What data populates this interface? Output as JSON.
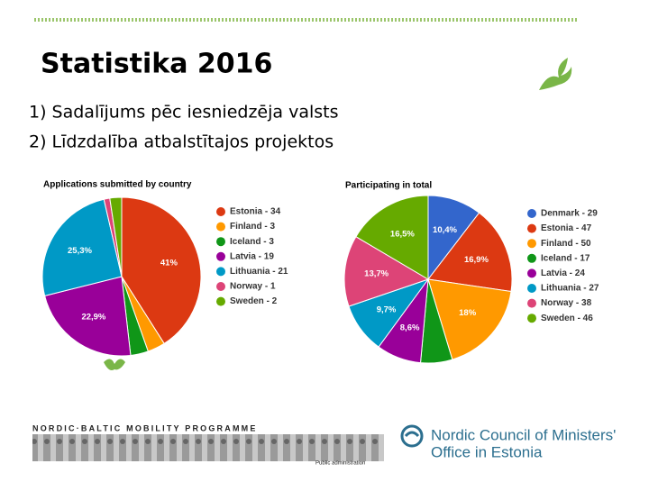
{
  "slide": {
    "title": "Statistika 2016",
    "bullets": [
      "1) Sadalījums pēc iesniedzēja valsts",
      "2) Līdzdalība atbalstītajos projektos"
    ]
  },
  "footer": {
    "programme": "NORDIC·BALTIC MOBILITY PROGRAMME",
    "caption": "Public administration",
    "org_line1": "Nordic Council of Ministers'",
    "org_line2": "Office in Estonia"
  },
  "chart_data": [
    {
      "type": "pie",
      "title": "Applications submitted by country",
      "categories": [
        "Estonia - 34",
        "Finland - 3",
        "Iceland - 3",
        "Latvia - 19",
        "Lithuania - 21",
        "Norway - 1",
        "Sweden - 2"
      ],
      "values": [
        41,
        3.6,
        3.6,
        22.9,
        25.3,
        1.2,
        2.4
      ],
      "value_labels": [
        "41%",
        null,
        null,
        "22,9%",
        "25,3%",
        null,
        null
      ],
      "colors": [
        "#dc3912",
        "#ff9900",
        "#109618",
        "#990099",
        "#0099c6",
        "#dd4477",
        "#66aa00"
      ]
    },
    {
      "type": "pie",
      "title": "Participating in total",
      "categories": [
        "Denmark - 29",
        "Estonia - 47",
        "Finland - 50",
        "Iceland - 17",
        "Latvia - 24",
        "Lithuania - 27",
        "Norway - 38",
        "Sweden - 46"
      ],
      "values": [
        10.4,
        16.9,
        18,
        6.1,
        8.6,
        9.7,
        13.7,
        16.5
      ],
      "value_labels": [
        "10,4%",
        "16,9%",
        "18%",
        null,
        "8,6%",
        "9,7%",
        "13,7%",
        "16,5%"
      ],
      "colors": [
        "#3366cc",
        "#dc3912",
        "#ff9900",
        "#109618",
        "#990099",
        "#0099c6",
        "#dd4477",
        "#66aa00"
      ]
    }
  ]
}
